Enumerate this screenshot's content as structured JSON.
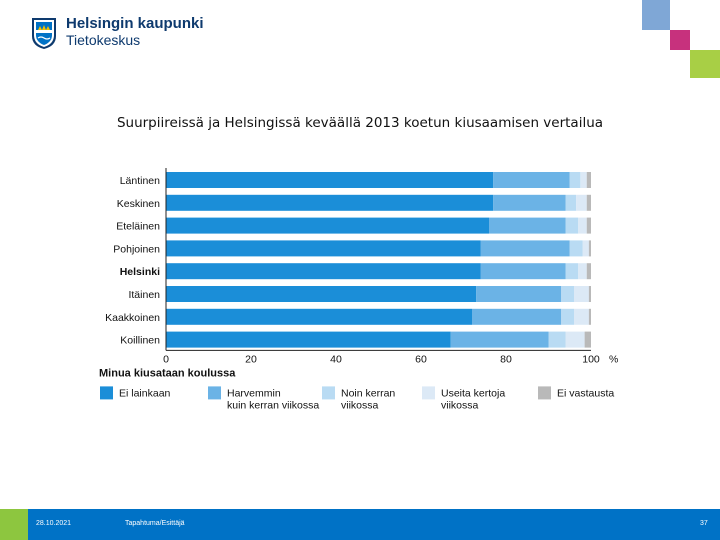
{
  "header": {
    "org_name": "Helsingin kaupunki",
    "org_unit": "Tietokeskus",
    "logo_icon": "city-crest-icon"
  },
  "colors": {
    "brand_blue": "#0072c6",
    "dark_blue": "#0e3a6e",
    "footer_green": "#8dc63f",
    "deco_lightblue": "#7fa7d6",
    "deco_magenta": "#c7317d",
    "deco_green": "#a8cf45"
  },
  "footer": {
    "date": "28.10.2021",
    "event": "Tapahtuma/Esittäjä",
    "page_number": "37"
  },
  "chart_data": {
    "type": "bar",
    "orientation": "horizontal",
    "stacked": true,
    "title": "Suurpiireissä ja Helsingissä keväällä 2013 koetun kiusaamisen vertailua",
    "xlabel": "Minua kiusataan koulussa",
    "x_unit": "%",
    "xlim": [
      0,
      100
    ],
    "x_ticks": [
      "0",
      "20",
      "40",
      "60",
      "80",
      "100"
    ],
    "categories": [
      "Läntinen",
      "Keskinen",
      "Eteläinen",
      "Pohjoinen",
      "Helsinki",
      "Itäinen",
      "Kaakkoinen",
      "Koillinen"
    ],
    "bold_categories": [
      "Helsinki"
    ],
    "series": [
      {
        "name": "Ei lainkaan",
        "color": "#1b8ed8",
        "values": [
          77,
          77,
          76,
          74,
          74,
          73,
          72,
          67
        ]
      },
      {
        "name": "Harvemmin kuin kerran viikossa",
        "color": "#6bb3e6",
        "values": [
          18,
          17,
          18,
          21,
          20,
          20,
          21,
          23
        ]
      },
      {
        "name": "Noin kerran viikossa",
        "color": "#b9dbf3",
        "values": [
          2.5,
          2.5,
          3,
          3,
          3,
          3,
          3,
          4
        ]
      },
      {
        "name": "Useita kertoja viikossa",
        "color": "#dce9f6",
        "values": [
          1.5,
          2.5,
          2,
          1.5,
          2,
          3.5,
          3.5,
          4.5
        ]
      },
      {
        "name": "Ei vastausta",
        "color": "#b9b9b9",
        "values": [
          1,
          1,
          1,
          0.5,
          1,
          0.5,
          0.5,
          1.5
        ]
      }
    ],
    "legend_position": "bottom",
    "grid": false
  }
}
